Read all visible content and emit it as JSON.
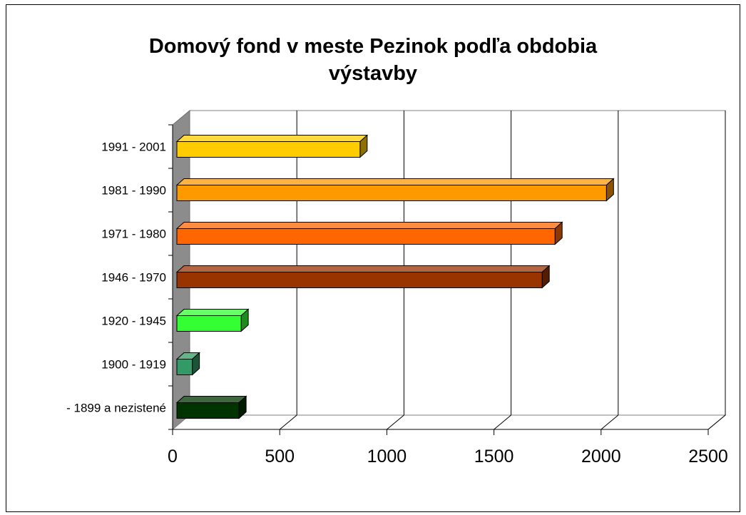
{
  "chart_data": {
    "type": "bar",
    "orientation": "horizontal",
    "style": "3d",
    "title_lines": [
      "Domový fond v meste Pezinok podľa obdobia",
      "výstavby"
    ],
    "categories": [
      "- 1899 a nezistené",
      "1900 - 1919",
      "1920 - 1945",
      "1946 - 1970",
      "1971 - 1980",
      "1981 - 1990",
      "1991 - 2001"
    ],
    "values": [
      290,
      72,
      300,
      1705,
      1765,
      2005,
      855
    ],
    "colors": [
      "#003300",
      "#339966",
      "#33FF33",
      "#993300",
      "#FF6600",
      "#FF9900",
      "#FFCC00"
    ],
    "xlim": [
      0,
      2500
    ],
    "xticks": [
      "0",
      "500",
      "1000",
      "1500",
      "2000",
      "2500"
    ],
    "grid": true,
    "legend": "none"
  }
}
